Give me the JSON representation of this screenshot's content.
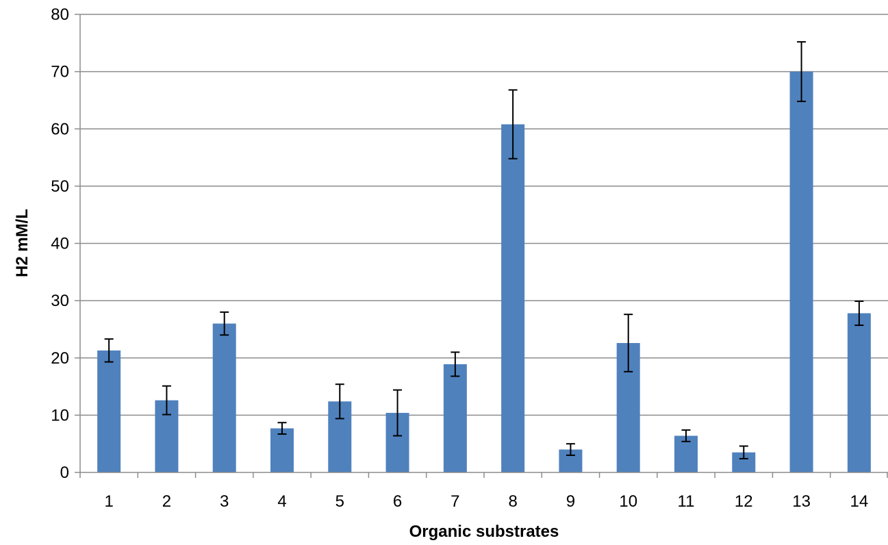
{
  "chart_data": {
    "type": "bar",
    "title": "",
    "xlabel": "Organic substrates",
    "ylabel": "H2 mM/L",
    "categories": [
      "1",
      "2",
      "3",
      "4",
      "5",
      "6",
      "7",
      "8",
      "9",
      "10",
      "11",
      "12",
      "13",
      "14"
    ],
    "series": [
      {
        "values": [
          21.3,
          12.6,
          26.0,
          7.7,
          12.4,
          10.4,
          18.9,
          60.8,
          4.0,
          22.6,
          6.4,
          3.5,
          70.0,
          27.8
        ],
        "error": [
          2.0,
          2.5,
          2.0,
          1.0,
          3.0,
          4.0,
          2.1,
          6.0,
          1.0,
          5.0,
          1.0,
          1.1,
          5.2,
          2.1
        ]
      }
    ],
    "ylim": [
      0,
      80
    ],
    "yticks": [
      0,
      10,
      20,
      30,
      40,
      50,
      60,
      70,
      80
    ],
    "grid": true,
    "legend": "none",
    "colors": {
      "bar": "#4f81bd",
      "grid": "#8c8c8c",
      "axis": "#8c8c8c",
      "error_bar": "#000000"
    }
  }
}
